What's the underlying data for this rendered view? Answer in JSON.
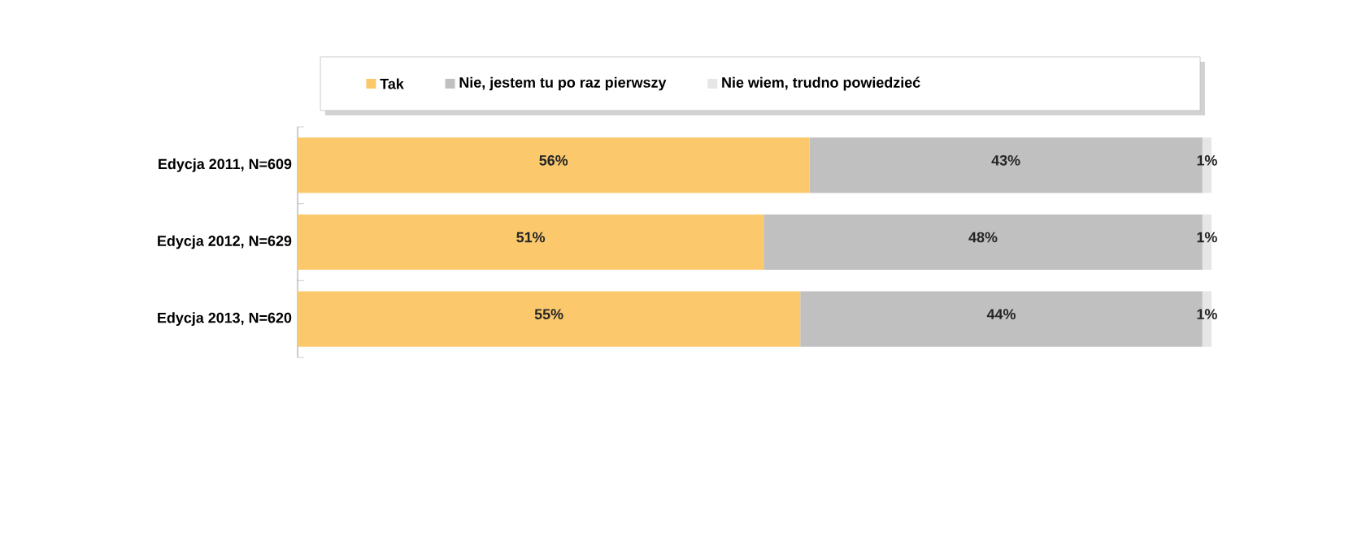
{
  "chart_data": {
    "type": "bar",
    "orientation": "horizontal",
    "stacked": true,
    "categories": [
      "Edycja 2011, N=609",
      "Edycja 2012, N=629",
      "Edycja 2013, N=620"
    ],
    "series": [
      {
        "name": "Tak",
        "color": "#fbc86c",
        "values": [
          56,
          51,
          55
        ],
        "value_labels": [
          "56%",
          "51%",
          "55%"
        ]
      },
      {
        "name": "Nie, jestem tu po raz pierwszy",
        "color": "#c0c0c0",
        "values": [
          43,
          48,
          44
        ],
        "value_labels": [
          "43%",
          "48%",
          "44%"
        ]
      },
      {
        "name": "Nie wiem, trudno powiedzieć",
        "color": "#e6e6e6",
        "values": [
          1,
          1,
          1
        ],
        "value_labels": [
          "1%",
          "1%",
          "1%"
        ]
      }
    ],
    "xlim": [
      0,
      100
    ],
    "tick_labels": "y",
    "legend": "top"
  }
}
